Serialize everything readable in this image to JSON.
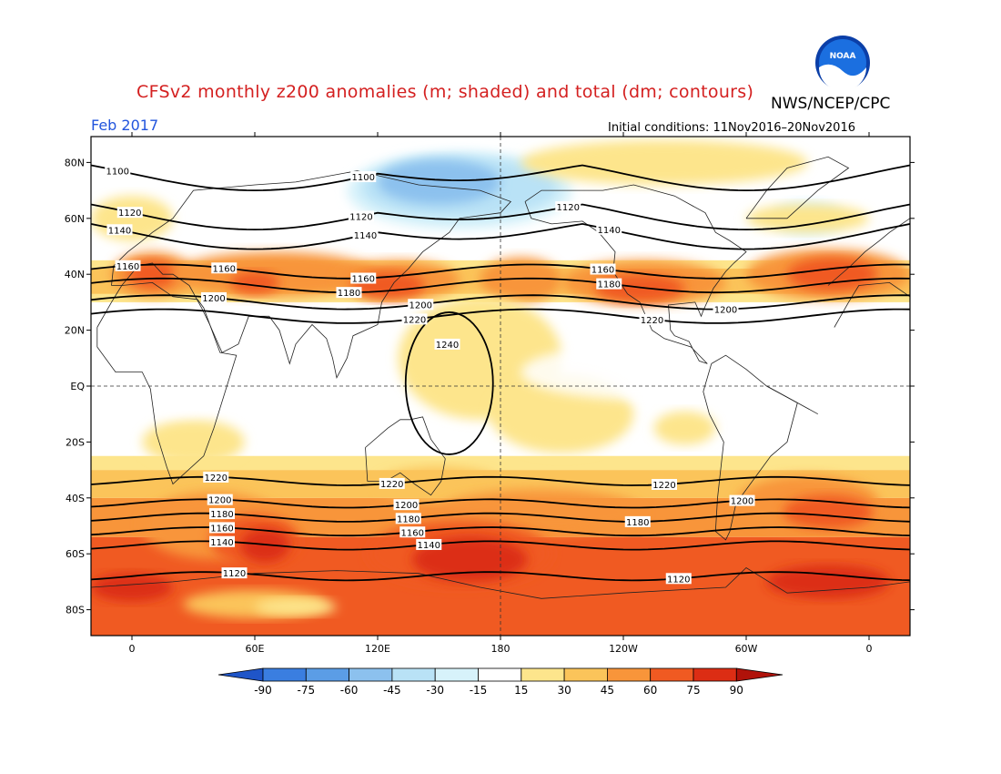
{
  "header": {
    "title": "CFSv2 monthly z200 anomalies (m; shaded) and total (dm; contours)",
    "agency": "NWS/NCEP/CPC",
    "month": "Feb 2017",
    "initial_conditions": "Initial conditions: 11Nov2016–20Nov2016",
    "logo_text": "NOAA"
  },
  "map": {
    "lat_ticks": [
      "80N",
      "60N",
      "40N",
      "20N",
      "EQ",
      "20S",
      "40S",
      "60S",
      "80S"
    ],
    "lon_ticks": [
      "0",
      "60E",
      "120E",
      "180",
      "120W",
      "60W",
      "0"
    ],
    "contours": [
      {
        "label": "1100",
        "lat": 76,
        "label_lons": [
          -7,
          113
        ]
      },
      {
        "label": "1120",
        "lat": 62,
        "label_lons": [
          -1,
          112,
          213
        ]
      },
      {
        "label": "1140",
        "lat": 55,
        "label_lons": [
          -6,
          114,
          233
        ]
      },
      {
        "label": "1160",
        "lat": 41,
        "label_lons": [
          -2,
          45,
          113,
          230
        ]
      },
      {
        "label": "1180",
        "lat": 36,
        "label_lons": [
          106,
          233
        ]
      },
      {
        "label": "1200",
        "lat": 30,
        "label_lons": [
          40,
          141,
          290
        ]
      },
      {
        "label": "1220",
        "lat": 25,
        "label_lons": [
          138,
          254
        ]
      },
      {
        "label": "1240",
        "lat": 8,
        "label_lons": [
          154
        ]
      },
      {
        "label": "1220",
        "lat": -34,
        "label_lons": [
          41,
          127,
          260
        ]
      },
      {
        "label": "1200",
        "lat": -42,
        "label_lons": [
          43,
          134,
          298
        ]
      },
      {
        "label": "1180",
        "lat": -47,
        "label_lons": [
          44,
          135,
          247
        ]
      },
      {
        "label": "1160",
        "lat": -52,
        "label_lons": [
          44,
          137
        ]
      },
      {
        "label": "1140",
        "lat": -57,
        "label_lons": [
          44,
          145
        ]
      },
      {
        "label": "1120",
        "lat": -68,
        "label_lons": [
          50,
          267
        ]
      }
    ],
    "colors": {
      "neg90": "#1f55c8",
      "neg75": "#3a7ee0",
      "neg60": "#5b9de6",
      "neg45": "#8cc1ee",
      "neg30": "#b9e2f6",
      "neg15": "#d7f2fa",
      "zero": "#ffffff",
      "pos15": "#fde58c",
      "pos30": "#fbc45a",
      "pos45": "#f8953a",
      "pos60": "#f05a22",
      "pos75": "#dc2d14",
      "pos90": "#b0120a"
    }
  },
  "colorbar": {
    "ticks": [
      "-90",
      "-75",
      "-60",
      "-45",
      "-30",
      "-15",
      "15",
      "30",
      "45",
      "60",
      "75",
      "90"
    ]
  }
}
